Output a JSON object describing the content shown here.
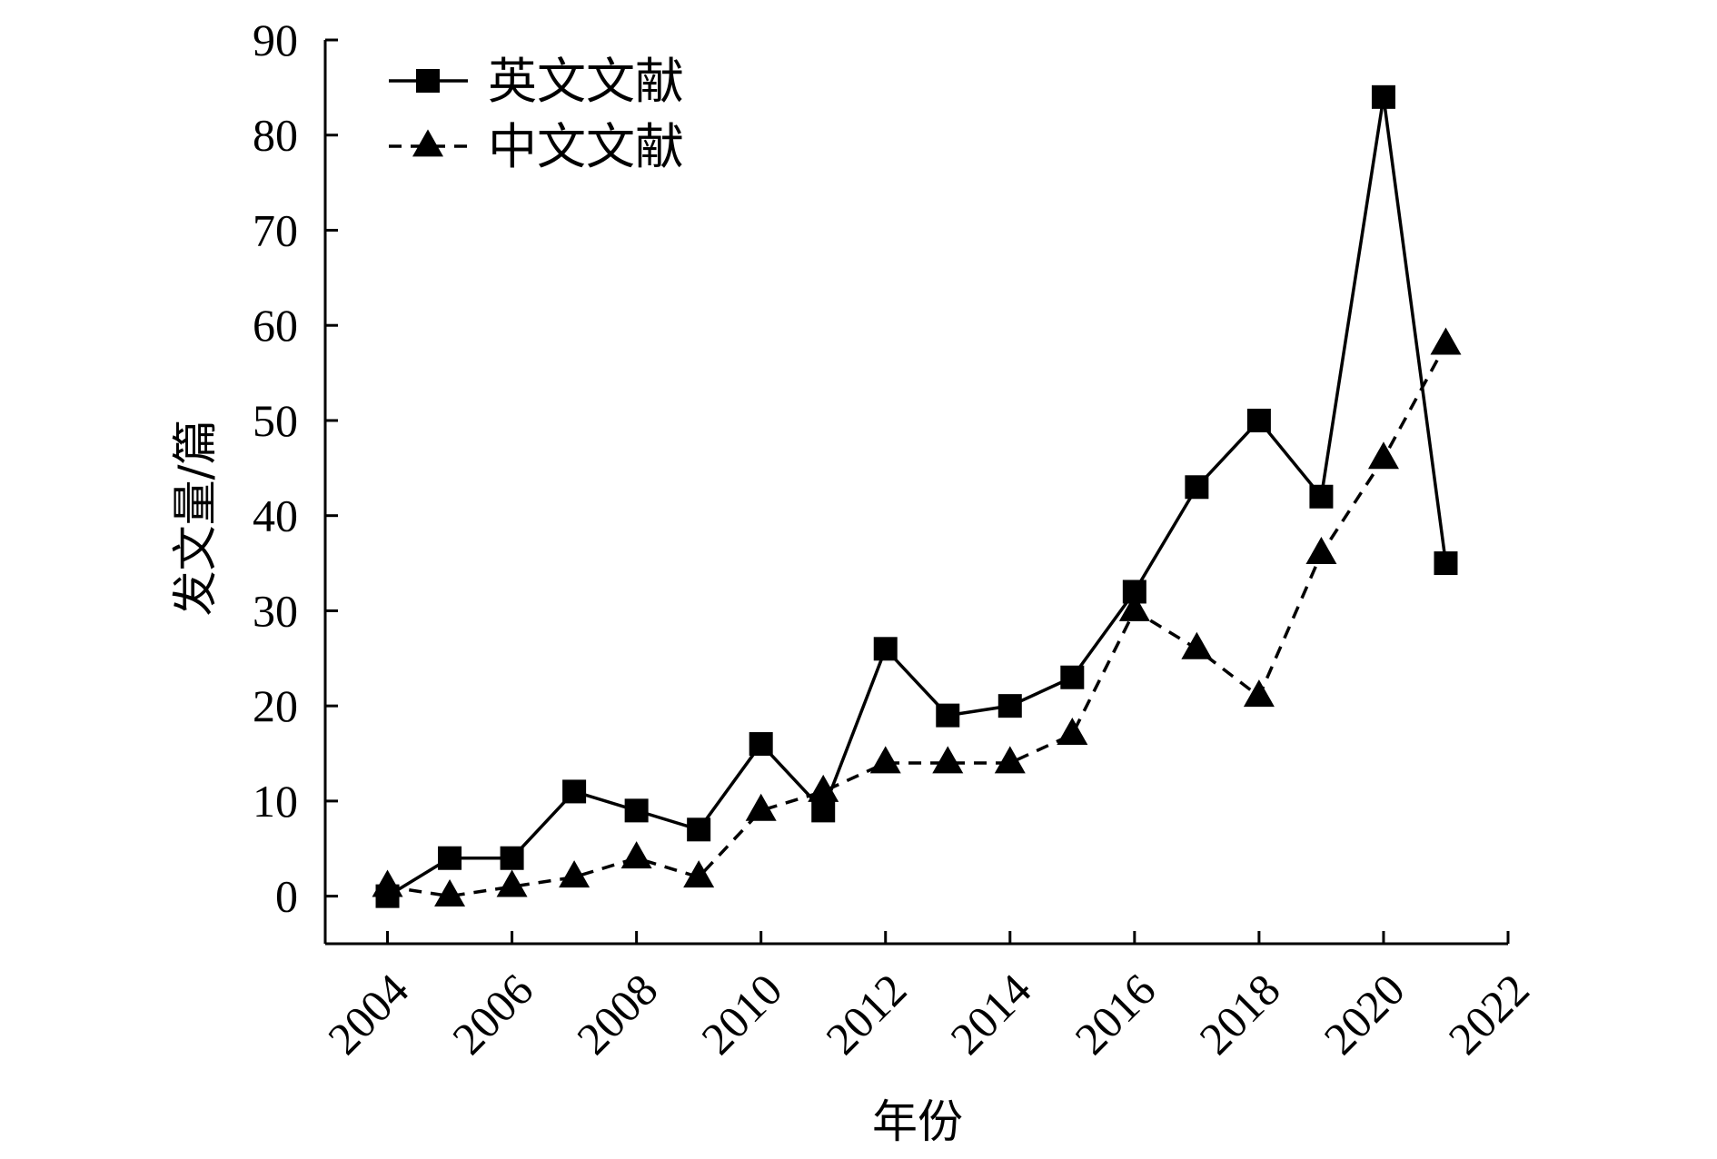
{
  "chart_data": {
    "type": "line",
    "xlabel": "年份",
    "ylabel": "发文量/篇",
    "xlim": [
      2003,
      2022
    ],
    "ylim": [
      -5,
      90
    ],
    "x_ticks": [
      2004,
      2006,
      2008,
      2010,
      2012,
      2014,
      2016,
      2018,
      2020,
      2022
    ],
    "y_ticks": [
      0,
      10,
      20,
      30,
      40,
      50,
      60,
      70,
      80,
      90
    ],
    "grid": false,
    "legend_position": "top-left",
    "x": [
      2004,
      2005,
      2006,
      2007,
      2008,
      2009,
      2010,
      2011,
      2012,
      2013,
      2014,
      2015,
      2016,
      2017,
      2018,
      2019,
      2020,
      2021
    ],
    "series": [
      {
        "name": "英文文献",
        "marker": "square",
        "line_style": "solid",
        "color": "#000000",
        "values": [
          0,
          4,
          4,
          11,
          9,
          7,
          16,
          9,
          26,
          19,
          20,
          23,
          32,
          43,
          50,
          42,
          84,
          35
        ]
      },
      {
        "name": "中文文献",
        "marker": "triangle",
        "line_style": "dashed",
        "color": "#000000",
        "values": [
          1,
          0,
          1,
          2,
          4,
          2,
          9,
          11,
          14,
          14,
          14,
          17,
          30,
          26,
          21,
          36,
          46,
          58
        ]
      }
    ]
  }
}
